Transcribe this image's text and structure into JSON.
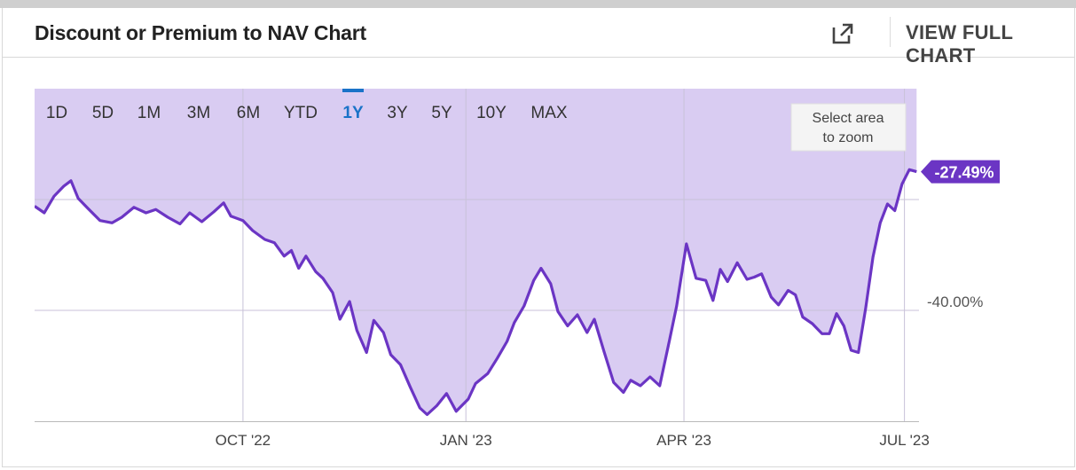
{
  "header": {
    "title": "Discount or Premium to NAV Chart",
    "view_full_chart_label": "VIEW FULL CHART",
    "external_icon": "external-link-icon"
  },
  "range_selector": {
    "options": [
      "1D",
      "5D",
      "1M",
      "3M",
      "6M",
      "YTD",
      "1Y",
      "3Y",
      "5Y",
      "10Y",
      "MAX"
    ],
    "selected": "1Y"
  },
  "zoom_hint": [
    "Select area",
    "to zoom"
  ],
  "current_value_label": "-27.49%",
  "colors": {
    "line": "#6b35c4",
    "fill": "#d9ccf2",
    "accent": "#1a73c8",
    "text": "#444444",
    "grid": "#c8c2d8"
  },
  "chart_data": {
    "type": "area",
    "title": "Discount or Premium to NAV Chart",
    "xlabel": "",
    "ylabel": "",
    "x_ticks": [
      "OCT '22",
      "JAN '23",
      "APR '23",
      "JUL '23"
    ],
    "y_ticks": [
      "-40.00%"
    ],
    "ylim": [
      -50,
      -20
    ],
    "grid": true,
    "series": [
      {
        "name": "",
        "points": [
          [
            "2022-07-07",
            -30.6
          ],
          [
            "2022-07-11",
            -31.2
          ],
          [
            "2022-07-15",
            -29.7
          ],
          [
            "2022-07-19",
            -28.8
          ],
          [
            "2022-07-22",
            -28.3
          ],
          [
            "2022-07-25",
            -29.9
          ],
          [
            "2022-07-29",
            -30.8
          ],
          [
            "2022-08-03",
            -31.9
          ],
          [
            "2022-08-08",
            -32.1
          ],
          [
            "2022-08-12",
            -31.6
          ],
          [
            "2022-08-17",
            -30.7
          ],
          [
            "2022-08-22",
            -31.2
          ],
          [
            "2022-08-26",
            -30.9
          ],
          [
            "2022-08-31",
            -31.6
          ],
          [
            "2022-09-05",
            -32.2
          ],
          [
            "2022-09-09",
            -31.2
          ],
          [
            "2022-09-14",
            -32.0
          ],
          [
            "2022-09-19",
            -31.1
          ],
          [
            "2022-09-23",
            -30.3
          ],
          [
            "2022-09-26",
            -31.5
          ],
          [
            "2022-10-01",
            -31.9
          ],
          [
            "2022-10-05",
            -32.8
          ],
          [
            "2022-10-10",
            -33.6
          ],
          [
            "2022-10-14",
            -33.9
          ],
          [
            "2022-10-18",
            -35.1
          ],
          [
            "2022-10-21",
            -34.6
          ],
          [
            "2022-10-24",
            -36.2
          ],
          [
            "2022-10-27",
            -35.1
          ],
          [
            "2022-10-31",
            -36.5
          ],
          [
            "2022-11-03",
            -37.1
          ],
          [
            "2022-11-07",
            -38.4
          ],
          [
            "2022-11-10",
            -40.8
          ],
          [
            "2022-11-14",
            -39.2
          ],
          [
            "2022-11-17",
            -41.8
          ],
          [
            "2022-11-21",
            -43.8
          ],
          [
            "2022-11-24",
            -40.9
          ],
          [
            "2022-11-28",
            -42.0
          ],
          [
            "2022-12-01",
            -44.0
          ],
          [
            "2022-12-05",
            -44.9
          ],
          [
            "2022-12-09",
            -46.9
          ],
          [
            "2022-12-13",
            -48.8
          ],
          [
            "2022-12-16",
            -49.4
          ],
          [
            "2022-12-20",
            -48.6
          ],
          [
            "2022-12-24",
            -47.5
          ],
          [
            "2022-12-28",
            -49.1
          ],
          [
            "2023-01-02",
            -48.0
          ],
          [
            "2023-01-05",
            -46.6
          ],
          [
            "2023-01-10",
            -45.7
          ],
          [
            "2023-01-14",
            -44.3
          ],
          [
            "2023-01-18",
            -42.8
          ],
          [
            "2023-01-21",
            -41.1
          ],
          [
            "2023-01-25",
            -39.6
          ],
          [
            "2023-01-29",
            -37.3
          ],
          [
            "2023-02-01",
            -36.2
          ],
          [
            "2023-02-05",
            -37.6
          ],
          [
            "2023-02-08",
            -40.1
          ],
          [
            "2023-02-12",
            -41.4
          ],
          [
            "2023-02-16",
            -40.4
          ],
          [
            "2023-02-20",
            -42.0
          ],
          [
            "2023-02-23",
            -40.8
          ],
          [
            "2023-02-27",
            -43.7
          ],
          [
            "2023-03-03",
            -46.5
          ],
          [
            "2023-03-07",
            -47.4
          ],
          [
            "2023-03-10",
            -46.3
          ],
          [
            "2023-03-14",
            -46.8
          ],
          [
            "2023-03-18",
            -46.0
          ],
          [
            "2023-03-22",
            -46.8
          ],
          [
            "2023-03-26",
            -42.7
          ],
          [
            "2023-03-29",
            -39.6
          ],
          [
            "2023-04-02",
            -34.0
          ],
          [
            "2023-04-06",
            -37.1
          ],
          [
            "2023-04-10",
            -37.3
          ],
          [
            "2023-04-13",
            -39.1
          ],
          [
            "2023-04-16",
            -36.3
          ],
          [
            "2023-04-19",
            -37.4
          ],
          [
            "2023-04-23",
            -35.7
          ],
          [
            "2023-04-27",
            -37.2
          ],
          [
            "2023-04-30",
            -37.0
          ],
          [
            "2023-05-03",
            -36.7
          ],
          [
            "2023-05-07",
            -38.8
          ],
          [
            "2023-05-10",
            -39.5
          ],
          [
            "2023-05-14",
            -38.2
          ],
          [
            "2023-05-17",
            -38.6
          ],
          [
            "2023-05-20",
            -40.6
          ],
          [
            "2023-05-24",
            -41.2
          ],
          [
            "2023-05-28",
            -42.1
          ],
          [
            "2023-05-31",
            -42.1
          ],
          [
            "2023-06-03",
            -40.3
          ],
          [
            "2023-06-06",
            -41.4
          ],
          [
            "2023-06-09",
            -43.6
          ],
          [
            "2023-06-12",
            -43.8
          ],
          [
            "2023-06-15",
            -39.8
          ],
          [
            "2023-06-18",
            -35.2
          ],
          [
            "2023-06-21",
            -32.1
          ],
          [
            "2023-06-24",
            -30.4
          ],
          [
            "2023-06-27",
            -31.0
          ],
          [
            "2023-06-30",
            -28.6
          ],
          [
            "2023-07-03",
            -27.3
          ],
          [
            "2023-07-06",
            -27.49
          ]
        ]
      }
    ]
  }
}
